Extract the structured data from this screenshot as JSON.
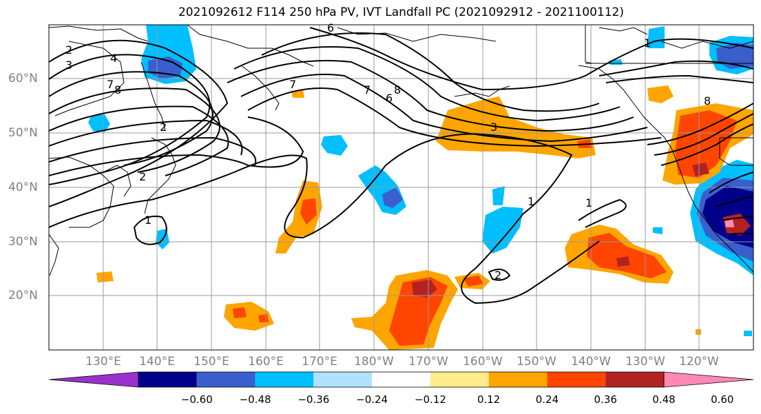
{
  "title": "2021092612 F114 250 hPa PV, IVT Landfall PC (2021092912 - 2021100112)",
  "lat_labels": [
    "60°N",
    "50°N",
    "40°N",
    "30°N",
    "20°N"
  ],
  "lon_labels": [
    "130°E",
    "140°E",
    "150°E",
    "160°E",
    "170°E",
    "180°W",
    "170°W",
    "160°W",
    "150°W",
    "140°W",
    "130°W",
    "120°W"
  ],
  "colorbar": {
    "ticks": [
      "−0.60",
      "−0.48",
      "−0.36",
      "−0.24",
      "−0.12",
      "0.12",
      "0.24",
      "0.36",
      "0.48",
      "0.60"
    ],
    "colors": [
      "#9932CC",
      "#00008B",
      "#3A5FCD",
      "#00BFFF",
      "#B0E2FF",
      "#FFFFFF",
      "#FFEC8B",
      "#FFA500",
      "#FF4500",
      "#B22222",
      "#FF88B4"
    ]
  },
  "contour_labels": [
    "2",
    "3",
    "4",
    "7",
    "8",
    "6",
    "7",
    "6",
    "8",
    "2",
    "2",
    "1",
    "3",
    "1",
    "1",
    "2",
    "1",
    "7",
    "8"
  ]
}
